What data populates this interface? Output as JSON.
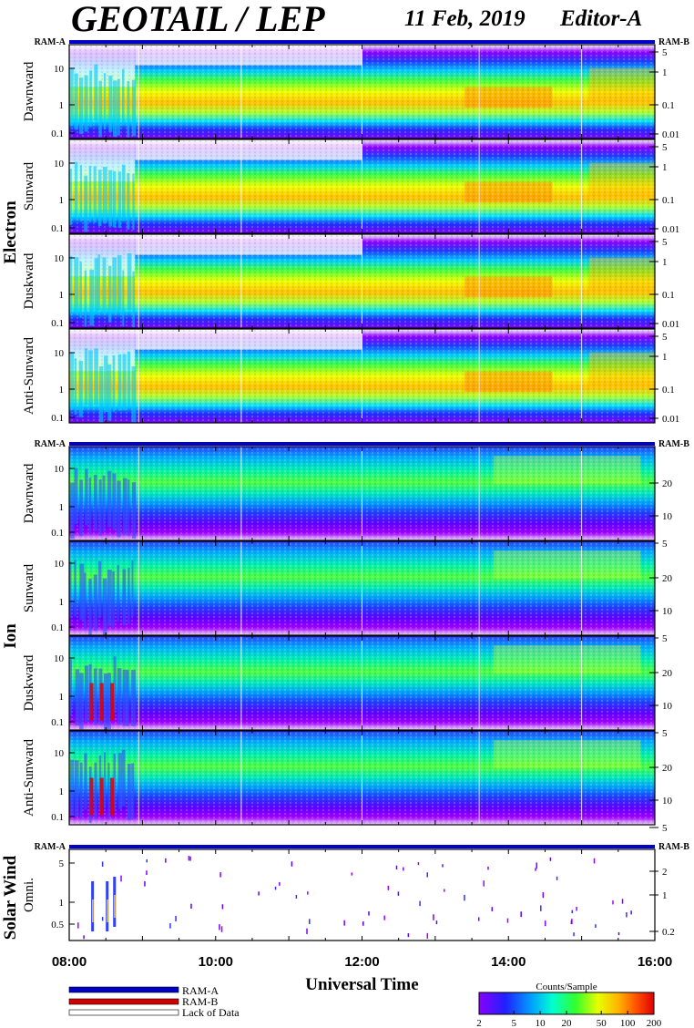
{
  "header": {
    "title": "GEOTAIL / LEP",
    "date": "11 Feb, 2019",
    "editor": "Editor-A"
  },
  "colors": {
    "ram_a": "#0000c8",
    "ram_b": "#d00000",
    "lack": "#ffffff"
  },
  "chart_data": {
    "type": "heatmap",
    "xlabel": "Universal Time",
    "x_ticks": [
      "08:00",
      "10:00",
      "12:00",
      "14:00",
      "16:00"
    ],
    "x_range": [
      "08:00",
      "16:00"
    ],
    "groups": [
      {
        "name": "Electron",
        "ram_left": "RAM-A",
        "ram_right": "RAM-B",
        "panels": [
          {
            "label": "Dawnward",
            "y_ticks_left": [
              "10",
              "1",
              "0.1"
            ],
            "y_ticks_right": [
              "5",
              "1",
              "0.1",
              "0.01"
            ]
          },
          {
            "label": "Sunward",
            "y_ticks_left": [
              "10",
              "1",
              "0.1"
            ],
            "y_ticks_right": [
              "5",
              "1",
              "0.1",
              "0.01"
            ]
          },
          {
            "label": "Duskward",
            "y_ticks_left": [
              "10",
              "1",
              "0.1"
            ],
            "y_ticks_right": [
              "5",
              "1",
              "0.1",
              "0.01"
            ]
          },
          {
            "label": "Anti-Sunward",
            "y_ticks_left": [
              "10",
              "1",
              "0.1"
            ],
            "y_ticks_right": [
              "5",
              "1",
              "0.1",
              "0.01"
            ]
          }
        ]
      },
      {
        "name": "Ion",
        "ram_left": "RAM-A",
        "ram_right": "RAM-B",
        "panels": [
          {
            "label": "Dawnward",
            "y_ticks_left": [
              "10",
              "1",
              "0.1"
            ],
            "y_ticks_right": [
              "20",
              "10",
              "5"
            ]
          },
          {
            "label": "Sunward",
            "y_ticks_left": [
              "10",
              "1",
              "0.1"
            ],
            "y_ticks_right": [
              "20",
              "10",
              "5"
            ]
          },
          {
            "label": "Duskward",
            "y_ticks_left": [
              "10",
              "1",
              "0.1"
            ],
            "y_ticks_right": [
              "20",
              "10",
              "5"
            ]
          },
          {
            "label": "Anti-Sunward",
            "y_ticks_left": [
              "10",
              "1",
              "0.1"
            ],
            "y_ticks_right": [
              "20",
              "10",
              "5"
            ]
          }
        ]
      },
      {
        "name": "Solar Wind",
        "ram_left": "RAM-A",
        "ram_right": "RAM-B",
        "panels": [
          {
            "label": "Omni.",
            "y_ticks_left": [
              "5",
              "1",
              "0.5"
            ],
            "y_ticks_right": [
              "2",
              "1",
              "0.2"
            ]
          }
        ]
      }
    ],
    "colorbar": {
      "title": "Counts/Sample",
      "ticks": [
        "2",
        "5",
        "10",
        "20",
        "50",
        "100",
        "200"
      ],
      "range": [
        2,
        200
      ],
      "scale": "log"
    },
    "legend": [
      {
        "label": "RAM-A",
        "color": "#0000c8"
      },
      {
        "label": "RAM-B",
        "color": "#d00000"
      },
      {
        "label": "Lack of Data",
        "color": "#ffffff"
      }
    ]
  }
}
